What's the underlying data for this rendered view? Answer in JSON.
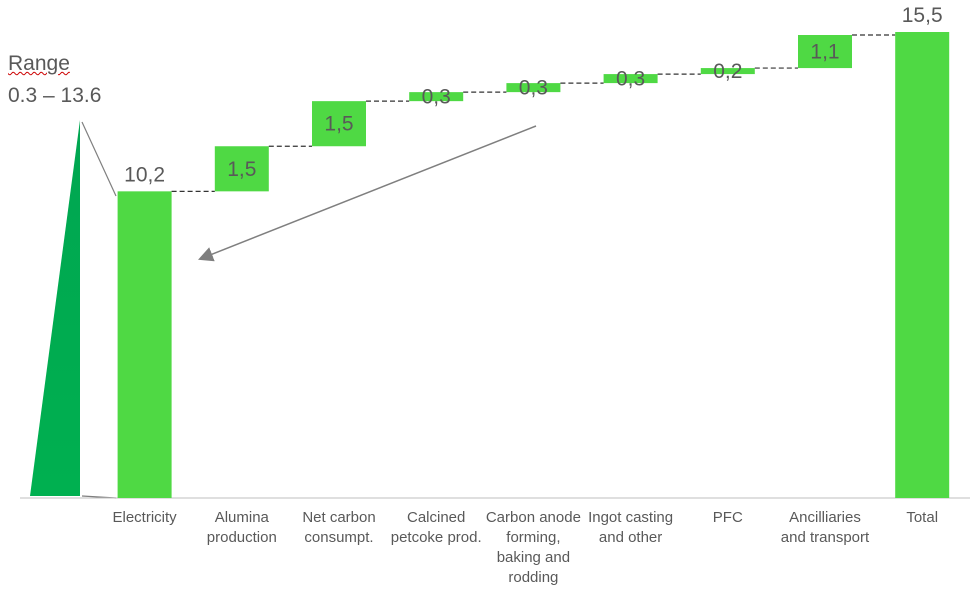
{
  "chart_data": {
    "type": "waterfall",
    "annotations": [
      "Range",
      "0.3 – 13.6"
    ],
    "categories": [
      "Electricity",
      "Alumina production",
      "Net carbon consumpt.",
      "Calcined petcoke prod.",
      "Carbon anode forming, baking and rodding",
      "Ingot casting and other",
      "PFC",
      "Ancilliaries and transport",
      "Total"
    ],
    "values": [
      10.2,
      1.5,
      1.5,
      0.3,
      0.3,
      0.3,
      0.2,
      1.1,
      15.5
    ],
    "value_labels": [
      "10,2",
      "1,5",
      "1,5",
      "0,3",
      "0,3",
      "0,3",
      "0,2",
      "1,1",
      "15,5"
    ],
    "color": "#4fd944"
  }
}
